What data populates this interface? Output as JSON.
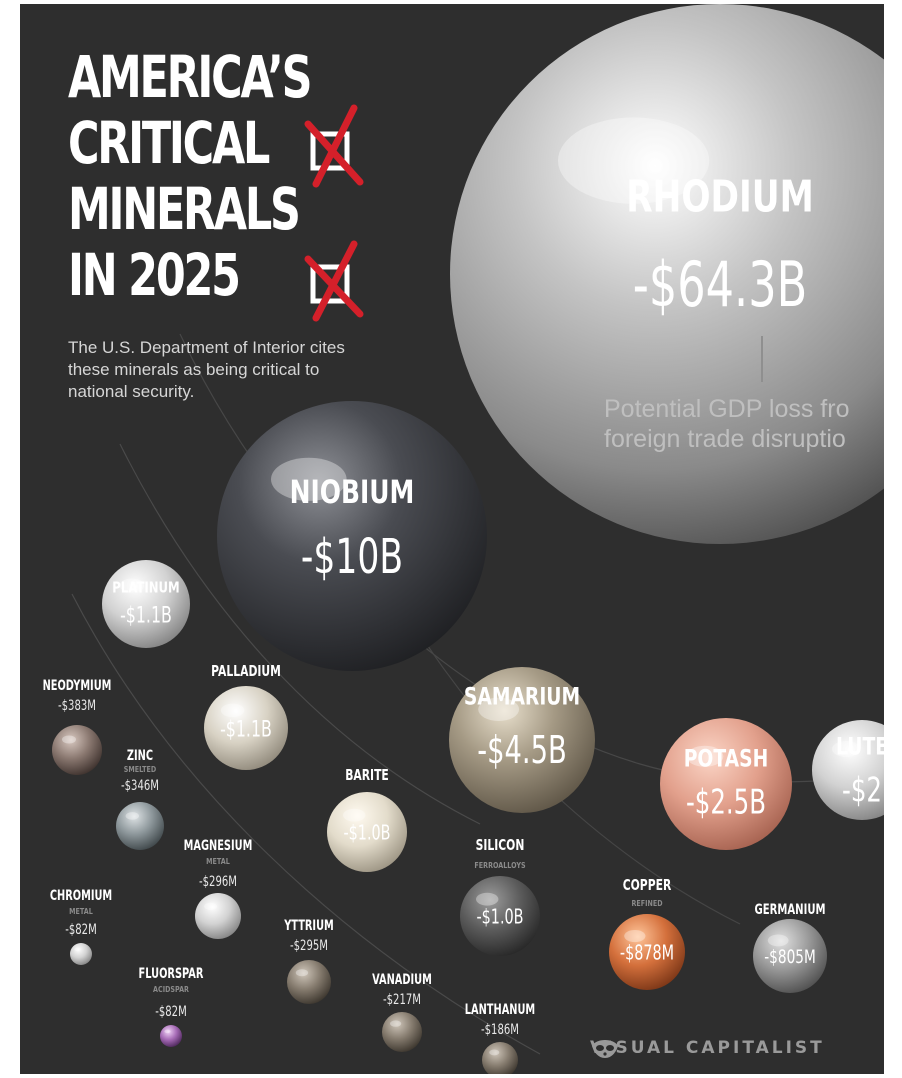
{
  "header": {
    "title_lines": [
      "AMERICA’S",
      "CRITICAL",
      "MINERALS",
      "IN 2025"
    ],
    "subtitle": "The U.S. Department of Interior cites these minerals as being critical to national security."
  },
  "note": {
    "lines": [
      "Potential GDP loss fro",
      "foreign trade disruptio"
    ]
  },
  "brand": {
    "name": "VISUAL CAPITALIST",
    "icon": "raccoon-icon"
  },
  "colors": {
    "background": "#2e2e2e",
    "text": "#ffffff",
    "checkmark": "#d4202a"
  },
  "chart_data": {
    "type": "bubble",
    "value_unit": "USD",
    "items": [
      {
        "name": "RHODIUM",
        "label": "-$64.3B",
        "value": -64300000000
      },
      {
        "name": "NIOBIUM",
        "label": "-$10B",
        "value": -10000000000
      },
      {
        "name": "SAMARIUM",
        "label": "-$4.5B",
        "value": -4500000000
      },
      {
        "name": "POTASH",
        "label": "-$2.5B",
        "value": -2500000000
      },
      {
        "name": "LUTE",
        "label": "-$2",
        "value": null
      },
      {
        "name": "PLATINUM",
        "label": "-$1.1B",
        "value": -1100000000
      },
      {
        "name": "PALLADIUM",
        "label": "-$1.1B",
        "value": -1100000000
      },
      {
        "name": "BARITE",
        "label": "-$1.0B",
        "value": -1000000000
      },
      {
        "name": "SILICON",
        "sublabel": "FERROALLOYS",
        "label": "-$1.0B",
        "value": -1000000000
      },
      {
        "name": "COPPER",
        "sublabel": "REFINED",
        "label": "-$878M",
        "value": -878000000
      },
      {
        "name": "GERMANIUM",
        "label": "-$805M",
        "value": -805000000
      },
      {
        "name": "NEODYMIUM",
        "label": "-$383M",
        "value": -383000000
      },
      {
        "name": "ZINC",
        "sublabel": "SMELTED",
        "label": "-$346M",
        "value": -346000000
      },
      {
        "name": "MAGNESIUM",
        "sublabel": "METAL",
        "label": "-$296M",
        "value": -296000000
      },
      {
        "name": "YTTRIUM",
        "label": "-$295M",
        "value": -295000000
      },
      {
        "name": "VANADIUM",
        "label": "-$217M",
        "value": -217000000
      },
      {
        "name": "LANTHANUM",
        "label": "-$186M",
        "value": -186000000
      },
      {
        "name": "CHROMIUM",
        "sublabel": "METAL",
        "label": "-$82M",
        "value": -82000000
      },
      {
        "name": "FLUORSPAR",
        "sublabel": "ACIDSPAR",
        "label": "-$82M",
        "value": -82000000
      }
    ]
  }
}
